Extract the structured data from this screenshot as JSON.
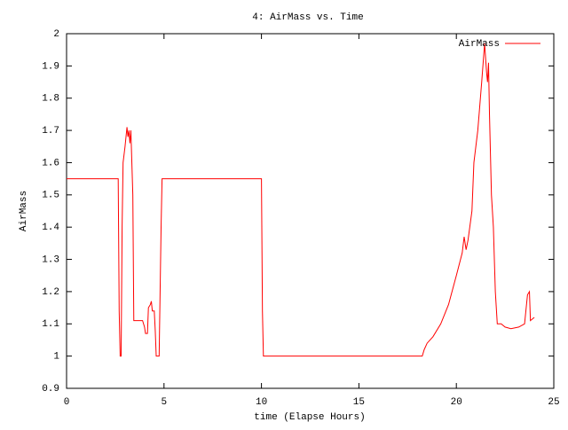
{
  "chart_data": {
    "type": "line",
    "title": "4: AirMass vs. Time",
    "xlabel": "time (Elapse Hours)",
    "ylabel": "AirMass",
    "x": [
      0,
      2.65,
      2.7,
      2.75,
      2.8,
      2.85,
      2.9,
      3.0,
      3.1,
      3.15,
      3.2,
      3.25,
      3.3,
      3.35,
      3.4,
      3.45,
      3.6,
      3.8,
      3.9,
      4.0,
      4.05,
      4.15,
      4.2,
      4.3,
      4.35,
      4.4,
      4.5,
      4.55,
      4.6,
      4.75,
      4.85,
      4.9,
      10.0,
      10.05,
      10.1,
      18.25,
      18.35,
      18.5,
      18.8,
      19.2,
      19.6,
      20.0,
      20.3,
      20.4,
      20.5,
      20.6,
      20.8,
      20.9,
      21.1,
      21.3,
      21.45,
      21.55,
      21.6,
      21.65,
      21.7,
      21.8,
      21.9,
      22.0,
      22.1,
      22.3,
      22.5,
      22.8,
      23.2,
      23.5,
      23.65,
      23.75,
      23.8,
      24.0
    ],
    "series": [
      {
        "name": "AirMass",
        "color": "#ff0000",
        "values": [
          1.55,
          1.55,
          1.14,
          1.0,
          1.0,
          1.4,
          1.6,
          1.65,
          1.71,
          1.68,
          1.7,
          1.66,
          1.7,
          1.6,
          1.5,
          1.11,
          1.11,
          1.11,
          1.11,
          1.09,
          1.07,
          1.07,
          1.15,
          1.16,
          1.17,
          1.14,
          1.14,
          1.08,
          1.0,
          1.0,
          1.4,
          1.55,
          1.55,
          1.14,
          1.0,
          1.0,
          1.02,
          1.04,
          1.06,
          1.1,
          1.16,
          1.25,
          1.32,
          1.37,
          1.33,
          1.36,
          1.45,
          1.6,
          1.7,
          1.85,
          1.97,
          1.88,
          1.85,
          1.91,
          1.75,
          1.5,
          1.4,
          1.2,
          1.1,
          1.1,
          1.09,
          1.085,
          1.09,
          1.1,
          1.19,
          1.2,
          1.11,
          1.12
        ]
      }
    ],
    "xlim": [
      0,
      25
    ],
    "xticks": [
      0,
      5,
      10,
      15,
      20,
      25
    ],
    "ylim": [
      0.9,
      2
    ],
    "yticks": [
      0.9,
      1,
      1.1,
      1.2,
      1.3,
      1.4,
      1.5,
      1.6,
      1.7,
      1.8,
      1.9,
      2
    ],
    "grid": false,
    "legend": "top-right"
  }
}
